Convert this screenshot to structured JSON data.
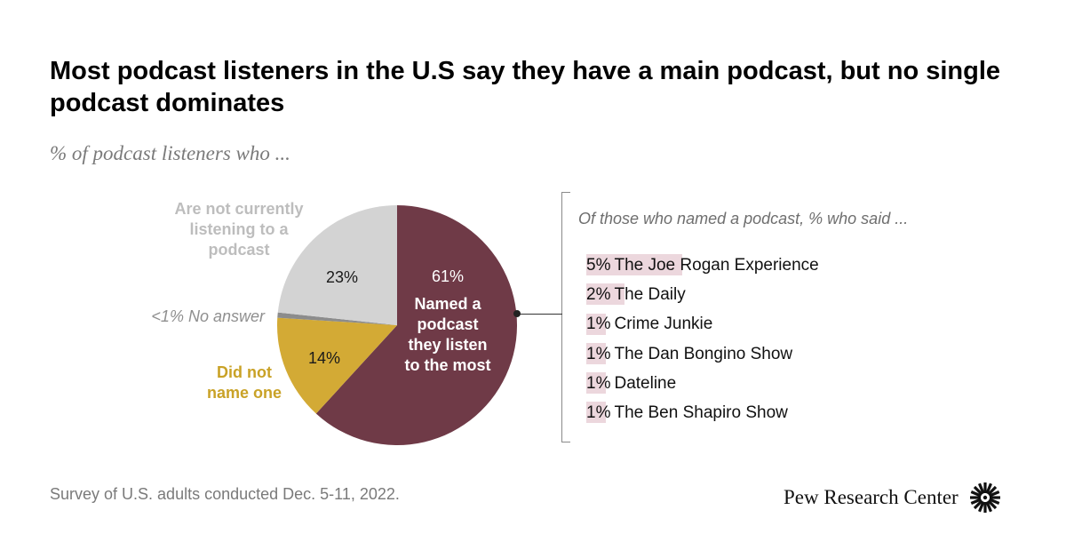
{
  "title": "Most podcast listeners in the U.S say they have a main podcast, but no single podcast dominates",
  "subtitle": "% of podcast listeners who ...",
  "chart_data": [
    {
      "type": "pie",
      "slices": [
        {
          "label": "Named a podcast they listen to the most",
          "value": 61,
          "value_label": "61%",
          "color": "#6f3a47"
        },
        {
          "label": "Did not name one",
          "value": 14,
          "value_label": "14%",
          "color": "#d3aa35"
        },
        {
          "label": "No answer",
          "value": 0.7,
          "value_label": "<1%",
          "color": "#8c8c8c"
        },
        {
          "label": "Are not currently listening to a podcast",
          "value": 23,
          "value_label": "23%",
          "color": "#d3d3d3"
        }
      ],
      "labels": {
        "not_listening": "Are not currently listening to a podcast",
        "no_answer": "<1% No answer",
        "did_not_name": "Did not name one",
        "named_pct": "61%",
        "named_text": "Named a podcast they listen to the most",
        "did_not_pct": "14%",
        "not_listening_pct": "23%"
      }
    },
    {
      "type": "bar",
      "title": "Of those who named a podcast, % who said ...",
      "categories": [
        "The Joe Rogan Experience",
        "The Daily",
        "Crime Junkie",
        "The Dan Bongino Show",
        "Dateline",
        "The Ben Shapiro Show"
      ],
      "values": [
        5,
        2,
        1,
        1,
        1,
        1
      ],
      "value_labels": [
        "5%",
        "2%",
        "1%",
        "1%",
        "1%",
        "1%"
      ],
      "bar_color": "#ecd7dd"
    }
  ],
  "source": "Survey of U.S. adults conducted Dec. 5-11, 2022.",
  "logo": {
    "text": "Pew Research Center",
    "icon": "pew-sunburst-icon"
  }
}
